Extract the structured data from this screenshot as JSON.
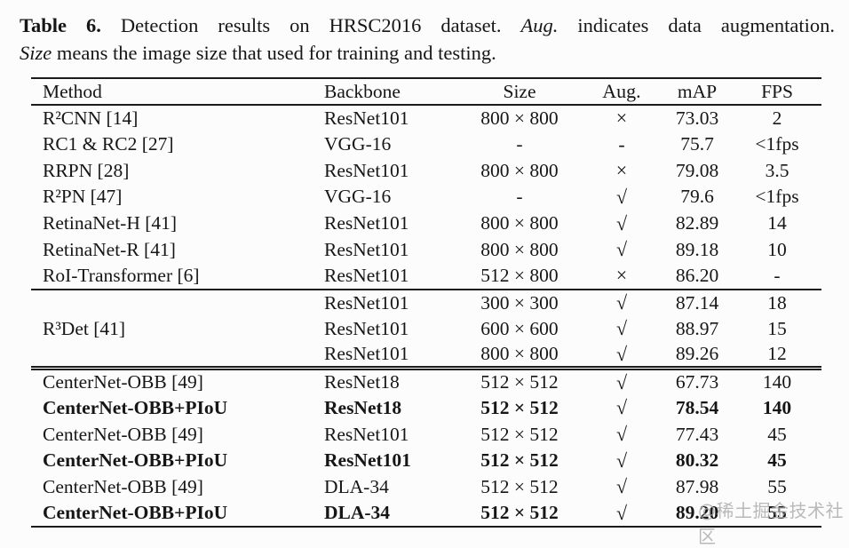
{
  "caption": {
    "label": "Table 6.",
    "line1_text": " Detection results on HRSC2016 dataset. ",
    "aug_italic": "Aug.",
    "line1_end": " indicates data augmentation.",
    "size_italic": "Size",
    "line2_text": " means the image size that used for training and testing."
  },
  "table": {
    "columns": [
      "Method",
      "Backbone",
      "Size",
      "Aug.",
      "mAP",
      "FPS"
    ],
    "rows": [
      {
        "method": "R²CNN [14]",
        "backbone": "ResNet101",
        "size": "800 × 800",
        "aug": "×",
        "map": "73.03",
        "fps": "2",
        "bold": false
      },
      {
        "method": "RC1 & RC2 [27]",
        "backbone": "VGG-16",
        "size": "-",
        "aug": "-",
        "map": "75.7",
        "fps": "<1fps",
        "bold": false
      },
      {
        "method": "RRPN [28]",
        "backbone": "ResNet101",
        "size": "800 × 800",
        "aug": "×",
        "map": "79.08",
        "fps": "3.5",
        "bold": false
      },
      {
        "method": "R²PN [47]",
        "backbone": "VGG-16",
        "size": "-",
        "aug": "√",
        "map": "79.6",
        "fps": "<1fps",
        "bold": false
      },
      {
        "method": "RetinaNet-H [41]",
        "backbone": "ResNet101",
        "size": "800 × 800",
        "aug": "√",
        "map": "82.89",
        "fps": "14",
        "bold": false
      },
      {
        "method": "RetinaNet-R [41]",
        "backbone": "ResNet101",
        "size": "800 × 800",
        "aug": "√",
        "map": "89.18",
        "fps": "10",
        "bold": false
      },
      {
        "method": "RoI-Transformer [6]",
        "backbone": "ResNet101",
        "size": "512 × 800",
        "aug": "×",
        "map": "86.20",
        "fps": "-",
        "bold": false,
        "rule_after": "single"
      },
      {
        "method": "",
        "backbone": "ResNet101",
        "size": "300 × 300",
        "aug": "√",
        "map": "87.14",
        "fps": "18",
        "bold": false
      },
      {
        "method": "R³Det [41]",
        "backbone": "ResNet101",
        "size": "600 × 600",
        "aug": "√",
        "map": "88.97",
        "fps": "15",
        "bold": false
      },
      {
        "method": "",
        "backbone": "ResNet101",
        "size": "800 × 800",
        "aug": "√",
        "map": "89.26",
        "fps": "12",
        "bold": false,
        "rule_after": "double"
      },
      {
        "method": "CenterNet-OBB [49]",
        "backbone": "ResNet18",
        "size": "512 × 512",
        "aug": "√",
        "map": "67.73",
        "fps": "140",
        "bold": false
      },
      {
        "method": "CenterNet-OBB+PIoU",
        "backbone": "ResNet18",
        "size": "512 × 512",
        "aug": "√",
        "map": "78.54",
        "fps": "140",
        "bold": true
      },
      {
        "method": "CenterNet-OBB [49]",
        "backbone": "ResNet101",
        "size": "512 × 512",
        "aug": "√",
        "map": "77.43",
        "fps": "45",
        "bold": false
      },
      {
        "method": "CenterNet-OBB+PIoU",
        "backbone": "ResNet101",
        "size": "512 × 512",
        "aug": "√",
        "map": "80.32",
        "fps": "45",
        "bold": true
      },
      {
        "method": "CenterNet-OBB [49]",
        "backbone": "DLA-34",
        "size": "512 × 512",
        "aug": "√",
        "map": "87.98",
        "fps": "55",
        "bold": false
      },
      {
        "method": "CenterNet-OBB+PIoU",
        "backbone": "DLA-34",
        "size": "512 × 512",
        "aug": "√",
        "map": "89.20",
        "fps": "55",
        "bold": true
      }
    ]
  },
  "watermark": "@稀土掘金技术社区"
}
